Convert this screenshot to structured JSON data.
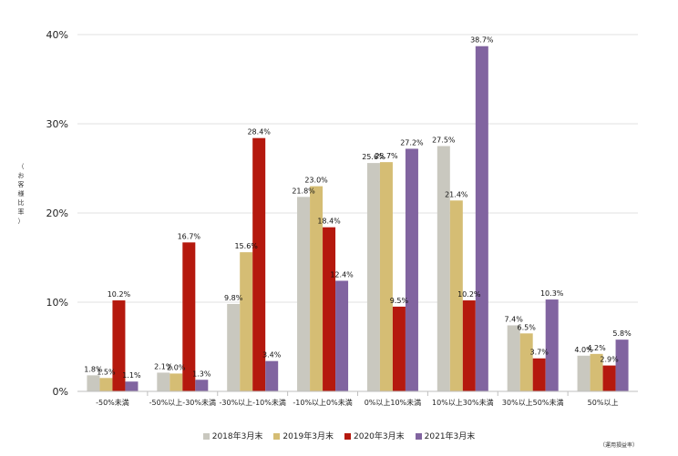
{
  "chart_data": {
    "type": "bar",
    "title": "",
    "xlabel": "",
    "ylabel": "（お客様比率）",
    "ylim": [
      0,
      40
    ],
    "yticks": [
      "0%",
      "10%",
      "20%",
      "30%",
      "40%"
    ],
    "grid": true,
    "legend_position": "bottom",
    "note": "（運用損益率）",
    "categories": [
      "-50%未満",
      "-50%以上-30%未満",
      "-30%以上-10%未満",
      "-10%以上0%未満",
      "0%以上10%未満",
      "10%以上30%未満",
      "30%以上50%未満",
      "50%以上"
    ],
    "series": [
      {
        "name": "2018年3月末",
        "color": "#c9c8bf",
        "values": [
          1.8,
          2.1,
          9.8,
          21.8,
          25.6,
          27.5,
          7.4,
          4.0
        ],
        "labels": [
          "1.8%",
          "2.1%",
          "9.8%",
          "21.8%",
          "25.6%",
          "27.5%",
          "7.4%",
          "4.0%"
        ]
      },
      {
        "name": "2019年3月末",
        "color": "#d5bd74",
        "values": [
          1.5,
          2.0,
          15.6,
          23.0,
          25.7,
          21.4,
          6.5,
          4.2
        ],
        "labels": [
          "1.5%",
          "2.0%",
          "15.6%",
          "23.0%",
          "25.7%",
          "21.4%",
          "6.5%",
          "4.2%"
        ]
      },
      {
        "name": "2020年3月末",
        "color": "#b5190e",
        "values": [
          10.2,
          16.7,
          28.4,
          18.4,
          9.5,
          10.2,
          3.7,
          2.9
        ],
        "labels": [
          "10.2%",
          "16.7%",
          "28.4%",
          "18.4%",
          "9.5%",
          "10.2%",
          "3.7%",
          "2.9%"
        ]
      },
      {
        "name": "2021年3月末",
        "color": "#8164a0",
        "values": [
          1.1,
          1.3,
          3.4,
          12.4,
          27.2,
          38.7,
          10.3,
          5.8
        ],
        "labels": [
          "1.1%",
          "1.3%",
          "3.4%",
          "12.4%",
          "27.2%",
          "38.7%",
          "10.3%",
          "5.8%"
        ]
      }
    ]
  }
}
